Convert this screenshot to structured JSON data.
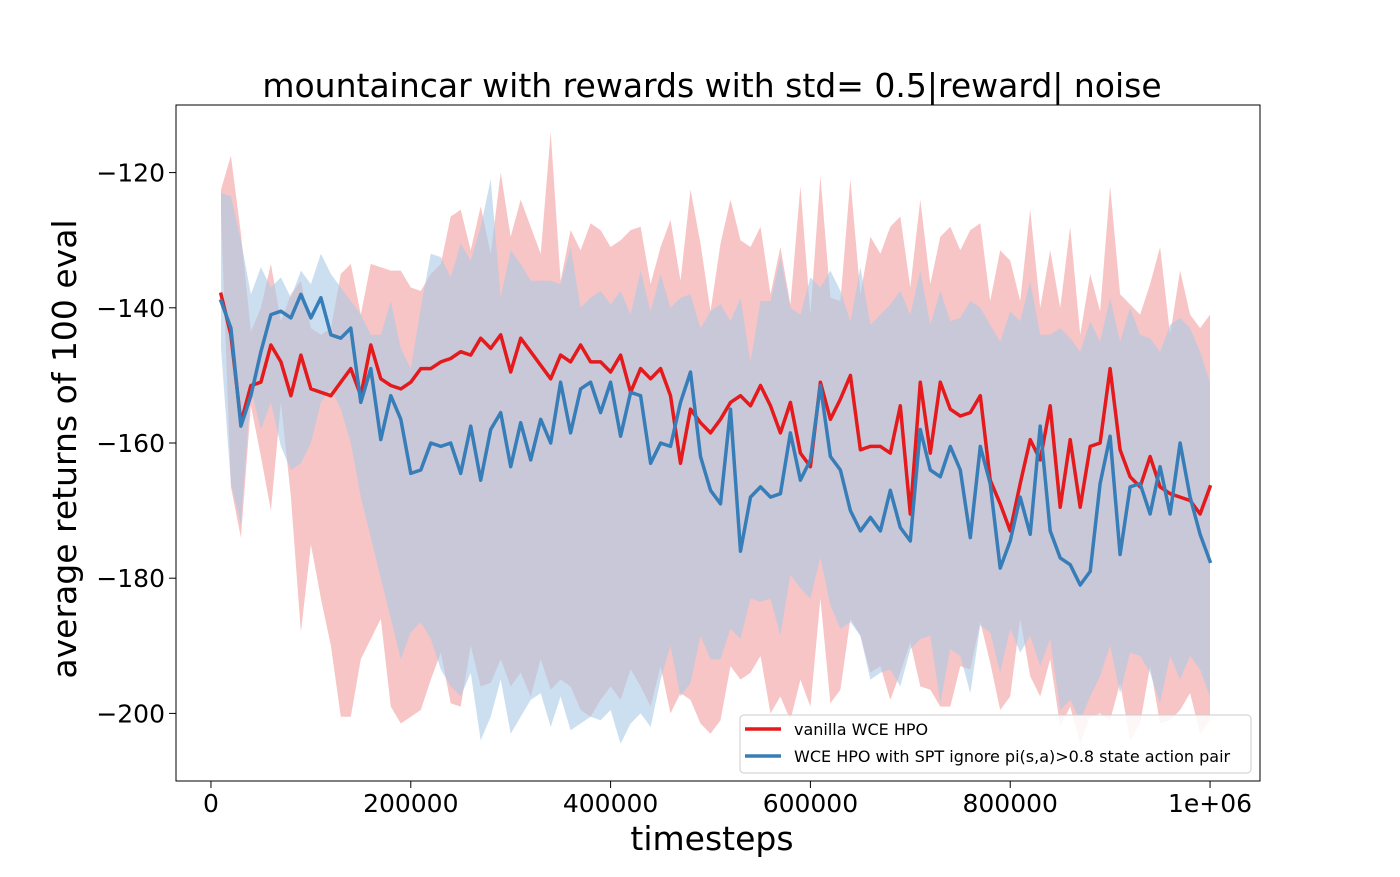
{
  "chart_data": {
    "type": "line",
    "title": "mountaincar with rewards with std= 0.5|reward| noise",
    "xlabel": "timesteps",
    "ylabel": "average returns of 100 eval",
    "xlim": [
      -35000,
      1050000
    ],
    "ylim": [
      -210,
      -110
    ],
    "xticks": [
      0,
      200000,
      400000,
      600000,
      800000,
      1000000
    ],
    "xtick_labels": [
      "0",
      "200000",
      "400000",
      "600000",
      "800000",
      "1e+06"
    ],
    "yticks": [
      -200,
      -180,
      -160,
      -140,
      -120
    ],
    "ytick_labels": [
      "−200",
      "−180",
      "−160",
      "−140",
      "−120"
    ],
    "grid": false,
    "legend_position": "lower-right",
    "x": [
      10000,
      20000,
      30000,
      40000,
      50000,
      60000,
      70000,
      80000,
      90000,
      100000,
      110000,
      120000,
      130000,
      140000,
      150000,
      160000,
      170000,
      180000,
      190000,
      200000,
      210000,
      220000,
      230000,
      240000,
      250000,
      260000,
      270000,
      280000,
      290000,
      300000,
      310000,
      320000,
      330000,
      340000,
      350000,
      360000,
      370000,
      380000,
      390000,
      400000,
      410000,
      420000,
      430000,
      440000,
      450000,
      460000,
      470000,
      480000,
      490000,
      500000,
      510000,
      520000,
      530000,
      540000,
      550000,
      560000,
      570000,
      580000,
      590000,
      600000,
      610000,
      620000,
      630000,
      640000,
      650000,
      660000,
      670000,
      680000,
      690000,
      700000,
      710000,
      720000,
      730000,
      740000,
      750000,
      760000,
      770000,
      780000,
      790000,
      800000,
      810000,
      820000,
      830000,
      840000,
      850000,
      860000,
      870000,
      880000,
      890000,
      900000,
      910000,
      920000,
      930000,
      940000,
      950000,
      960000,
      970000,
      980000,
      990000,
      1000000
    ],
    "series": [
      {
        "name": "vanilla WCE HPO",
        "color": "#e41a1c",
        "band_color": "#f4a6a7",
        "values": [
          -138,
          -144,
          -157,
          -151.5,
          -151,
          -145.5,
          -148,
          -153,
          -147,
          -152,
          -152.5,
          -153,
          -151,
          -149,
          -153,
          -145.5,
          -150.5,
          -151.5,
          -152,
          -151,
          -149,
          -149,
          -148,
          -147.5,
          -146.5,
          -147,
          -144.5,
          -146,
          -144,
          -149.5,
          -144.5,
          -146.5,
          -148.5,
          -150.5,
          -147,
          -148,
          -145.5,
          -148,
          -148,
          -149.5,
          -147,
          -152.5,
          -149,
          -150.5,
          -149,
          -153,
          -163,
          -155,
          -157,
          -158.5,
          -156.5,
          -154,
          -153,
          -154.5,
          -151.5,
          -154.5,
          -158.5,
          -154,
          -161.5,
          -163.5,
          -151,
          -156.5,
          -153.5,
          -150,
          -161,
          -160.5,
          -160.5,
          -161.5,
          -154.5,
          -170.5,
          -151,
          -161.5,
          -151,
          -155,
          -156,
          -155.5,
          -153,
          -165.5,
          -169,
          -173,
          -166,
          -159.5,
          -162.5,
          -154.5,
          -169.5,
          -159.5,
          -169.5,
          -160.5,
          -160,
          -149,
          -161,
          -165,
          -166.5,
          -162,
          -166.5,
          -167.5,
          -168,
          -168.5,
          -170.5,
          -166.5
        ],
        "upper": [
          -122.5,
          -117.5,
          -129,
          -143.5,
          -140,
          -133.5,
          -142,
          -138,
          -136,
          -143,
          -144,
          -143,
          -135,
          -133.5,
          -141,
          -133.5,
          -134,
          -134.5,
          -134.5,
          -137,
          -137.5,
          -135,
          -133.5,
          -126.5,
          -125.5,
          -131.5,
          -125,
          -132,
          -120,
          -129.5,
          -124,
          -128,
          -132,
          -114,
          -136,
          -128.5,
          -131.5,
          -127.5,
          -128.5,
          -131,
          -130,
          -128.5,
          -128,
          -136.5,
          -131,
          -127,
          -136,
          -122.5,
          -130.5,
          -140.5,
          -130.5,
          -124,
          -130,
          -131,
          -128,
          -138,
          -131,
          -139.5,
          -122,
          -141,
          -120.5,
          -138.5,
          -139,
          -121,
          -138,
          -129.5,
          -132,
          -128,
          -126.5,
          -137,
          -124,
          -136.5,
          -129.5,
          -128,
          -131.5,
          -128.5,
          -127.5,
          -139,
          -131.5,
          -133,
          -139,
          -125.5,
          -140,
          -131.5,
          -140,
          -128,
          -144,
          -135,
          -140.5,
          -122,
          -138,
          -139.5,
          -141,
          -136.5,
          -131,
          -144,
          -134.5,
          -141,
          -143,
          -141
        ],
        "lower": [
          -126,
          -166.5,
          -174,
          -154.5,
          -162,
          -170,
          -154,
          -168,
          -188,
          -175,
          -183,
          -190,
          -200.5,
          -200.5,
          -192,
          -189,
          -186,
          -199,
          -201.5,
          -200.5,
          -199.5,
          -195,
          -191,
          -198.5,
          -199,
          -190,
          -196,
          -195.5,
          -192,
          -196,
          -194,
          -197.5,
          -192,
          -196.5,
          -195,
          -196,
          -199.5,
          -200.5,
          -198,
          -196,
          -198,
          -193.5,
          -196,
          -199,
          -193,
          -200,
          -197,
          -198,
          -201.5,
          -203,
          -201,
          -193,
          -195,
          -194,
          -191.5,
          -200,
          -197.5,
          -201,
          -195,
          -199,
          -183,
          -198.5,
          -196.5,
          -186,
          -188.5,
          -194,
          -193,
          -198,
          -194,
          -189.5,
          -196,
          -196.5,
          -199,
          -199,
          -193,
          -193.5,
          -186.5,
          -192.5,
          -199.5,
          -197.5,
          -186,
          -194.5,
          -197.5,
          -192,
          -202,
          -199,
          -204.5,
          -200.5,
          -200,
          -201,
          -195.5,
          -204,
          -201.5,
          -193,
          -201.5,
          -201,
          -199.5,
          -197,
          -203,
          -201
        ]
      },
      {
        "name": "WCE HPO with SPT ignore pi(s,a)>0.8 state action pair",
        "color": "#377eb8",
        "band_color": "#aac9e6",
        "values": [
          -139,
          -143,
          -157.5,
          -153,
          -146.5,
          -141,
          -140.5,
          -141.5,
          -138,
          -141.5,
          -138.5,
          -144,
          -144.5,
          -143,
          -154,
          -149,
          -159.5,
          -153,
          -156.5,
          -164.5,
          -164,
          -160,
          -160.5,
          -160,
          -164.5,
          -157.5,
          -165.5,
          -158,
          -155.5,
          -163.5,
          -157,
          -162.5,
          -156.5,
          -160,
          -151,
          -158.5,
          -152,
          -151,
          -155.5,
          -151,
          -159,
          -152.5,
          -153,
          -163,
          -160,
          -160.5,
          -154,
          -149.5,
          -162,
          -167,
          -169,
          -155,
          -176,
          -168,
          -166.5,
          -168,
          -167.5,
          -158.5,
          -165.5,
          -162.5,
          -151.5,
          -162,
          -164,
          -170,
          -173,
          -171,
          -173,
          -167,
          -172.5,
          -174.5,
          -158,
          -164,
          -165,
          -160.5,
          -164,
          -174,
          -160.5,
          -166,
          -178.5,
          -174.5,
          -168,
          -173.5,
          -157.5,
          -173,
          -177,
          -178,
          -181,
          -179,
          -166,
          -159,
          -176.5,
          -166.5,
          -166,
          -170.5,
          -163.5,
          -170.5,
          -160,
          -168,
          -173.5,
          -177.5
        ],
        "upper": [
          -123,
          -123.5,
          -130,
          -138,
          -134,
          -137,
          -135.5,
          -138.5,
          -134.5,
          -136.5,
          -132,
          -135,
          -137,
          -139,
          -141,
          -144,
          -144,
          -139,
          -146,
          -149,
          -140,
          -132,
          -132.5,
          -135.5,
          -130.5,
          -133,
          -128,
          -121,
          -138.5,
          -131.5,
          -133.5,
          -136,
          -136,
          -136,
          -136.5,
          -131,
          -140,
          -138.5,
          -137.5,
          -139.5,
          -137.5,
          -141,
          -134.5,
          -140.5,
          -135,
          -140,
          -138.5,
          -138,
          -143,
          -140.5,
          -139.5,
          -142,
          -138.5,
          -148,
          -139,
          -139,
          -132.5,
          -140,
          -141,
          -135.5,
          -137,
          -134.5,
          -137.5,
          -142,
          -134,
          -142.5,
          -141,
          -139.5,
          -137.5,
          -141,
          -134.5,
          -142.5,
          -137.5,
          -142,
          -141.5,
          -139,
          -140,
          -142.5,
          -145,
          -140.5,
          -142,
          -136,
          -144,
          -144,
          -143,
          -144.5,
          -146.5,
          -142,
          -145,
          -138.5,
          -145,
          -140,
          -144,
          -144.5,
          -146.5,
          -142.5,
          -141.5,
          -143,
          -146.5,
          -151
        ],
        "lower": [
          -146,
          -166,
          -172,
          -152,
          -158,
          -154,
          -160.5,
          -164,
          -163,
          -160,
          -154,
          -152,
          -155,
          -160,
          -168,
          -174,
          -180,
          -186,
          -192,
          -188,
          -186.5,
          -189,
          -193.5,
          -196,
          -197.5,
          -194,
          -204,
          -200.5,
          -195,
          -203,
          -200.5,
          -198,
          -197,
          -202,
          -197.5,
          -202.5,
          -201.5,
          -200.5,
          -201,
          -199.5,
          -204.5,
          -201.5,
          -200,
          -202,
          -195,
          -190,
          -197.5,
          -195.5,
          -188.5,
          -192,
          -192,
          -187.5,
          -189,
          -183,
          -183.5,
          -183,
          -188.5,
          -179.5,
          -181.5,
          -183,
          -177,
          -184,
          -187.5,
          -186.5,
          -188.5,
          -195,
          -194,
          -193.5,
          -196,
          -190.5,
          -189,
          -188.5,
          -198.5,
          -190.5,
          -191.5,
          -197,
          -187,
          -188,
          -194,
          -187.5,
          -191,
          -188.5,
          -193,
          -189,
          -199.5,
          -198,
          -201,
          -197.5,
          -194.5,
          -190,
          -197,
          -191,
          -191.5,
          -194,
          -198.5,
          -191.5,
          -195,
          -191.5,
          -193.5,
          -197.5
        ]
      }
    ]
  }
}
